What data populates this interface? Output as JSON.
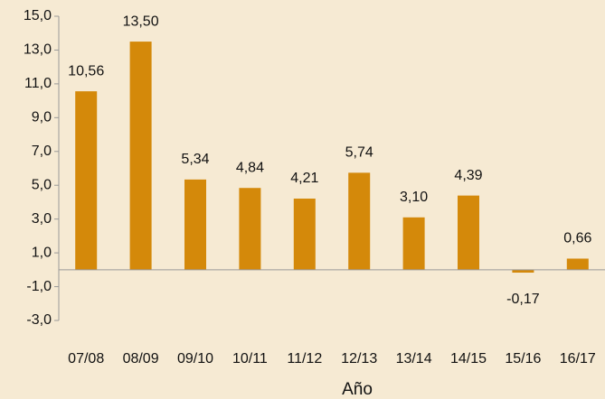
{
  "chart_data": {
    "type": "bar",
    "x_label": "Año",
    "categories": [
      "07/08",
      "08/09",
      "09/10",
      "10/11",
      "11/12",
      "12/13",
      "13/14",
      "14/15",
      "15/16",
      "16/17"
    ],
    "values": [
      10.56,
      13.5,
      5.34,
      4.84,
      4.21,
      5.74,
      3.1,
      4.39,
      -0.17,
      0.66
    ],
    "value_labels": [
      "10,56",
      "13,50",
      "5,34",
      "4,84",
      "4,21",
      "5,74",
      "3,10",
      "4,39",
      "-0,17",
      "0,66"
    ],
    "color": "#d4890a",
    "ylim": [
      -3,
      15
    ],
    "yticks": [
      {
        "value": -3,
        "label": "-3,0"
      },
      {
        "value": -1,
        "label": "-1,0"
      },
      {
        "value": 1,
        "label": "1,0"
      },
      {
        "value": 3,
        "label": "3,0"
      },
      {
        "value": 5,
        "label": "5,0"
      },
      {
        "value": 7,
        "label": "7,0"
      },
      {
        "value": 9,
        "label": "9,0"
      },
      {
        "value": 11,
        "label": "11,0"
      },
      {
        "value": 13,
        "label": "13,0"
      },
      {
        "value": 15,
        "label": "15,0"
      }
    ],
    "grid": false
  }
}
